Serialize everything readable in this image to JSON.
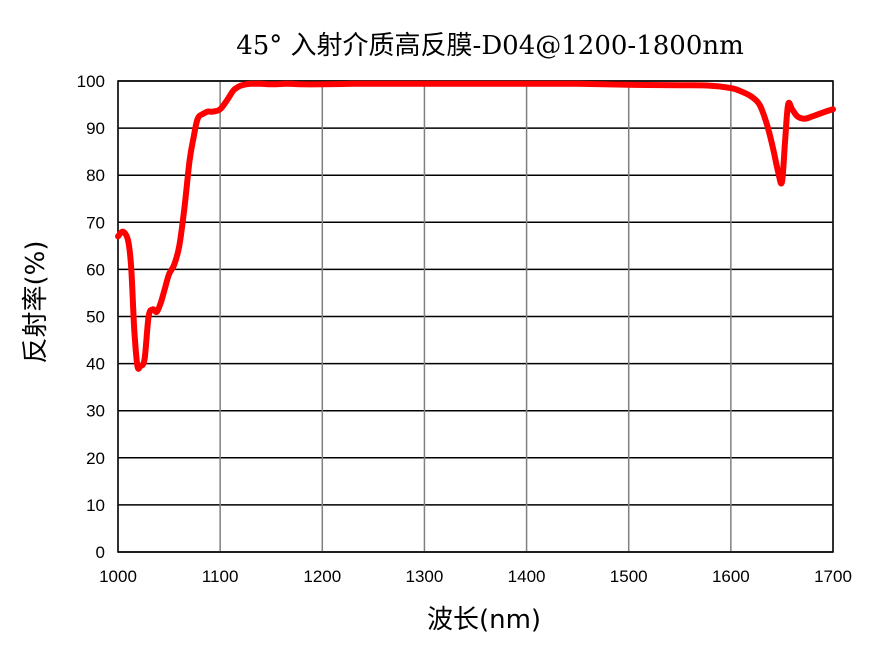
{
  "chart_data": {
    "type": "line",
    "title": "45° 入射介质高反膜-D04@1200-1800nm",
    "xlabel": "波长(nm)",
    "ylabel": "反射率(%)",
    "xlim": [
      1000,
      1700
    ],
    "ylim": [
      0,
      100
    ],
    "x_ticks": [
      "1000",
      "1100",
      "1200",
      "1300",
      "1400",
      "1500",
      "1600",
      "1700"
    ],
    "y_ticks": [
      "0",
      "10",
      "20",
      "30",
      "40",
      "50",
      "60",
      "70",
      "80",
      "90",
      "100"
    ],
    "grid": true,
    "series": [
      {
        "color": "#ff0000",
        "x": [
          1000,
          1005,
          1010,
          1013,
          1016,
          1019,
          1022,
          1026,
          1030,
          1034,
          1038,
          1042,
          1046,
          1050,
          1055,
          1060,
          1065,
          1070,
          1074,
          1078,
          1083,
          1088,
          1093,
          1100,
          1107,
          1113,
          1118,
          1123,
          1130,
          1140,
          1150,
          1165,
          1180,
          1200,
          1230,
          1260,
          1300,
          1350,
          1400,
          1450,
          1500,
          1550,
          1580,
          1600,
          1610,
          1620,
          1628,
          1635,
          1641,
          1646,
          1650,
          1653,
          1656,
          1660,
          1665,
          1672,
          1680,
          1690,
          1700
        ],
        "y": [
          67,
          68,
          66,
          60,
          47,
          39.5,
          39.5,
          41,
          50,
          51.5,
          51,
          53,
          56,
          59,
          61,
          65,
          73,
          83,
          88,
          92,
          93,
          93.5,
          93.5,
          94,
          96,
          98,
          98.8,
          99.2,
          99.4,
          99.4,
          99.3,
          99.4,
          99.3,
          99.3,
          99.4,
          99.4,
          99.4,
          99.4,
          99.4,
          99.4,
          99.2,
          99.1,
          99.0,
          98.5,
          97.8,
          96.7,
          95,
          91,
          86,
          81,
          78.5,
          87,
          95,
          94,
          92.5,
          92,
          92.5,
          93.3,
          94
        ]
      }
    ]
  }
}
